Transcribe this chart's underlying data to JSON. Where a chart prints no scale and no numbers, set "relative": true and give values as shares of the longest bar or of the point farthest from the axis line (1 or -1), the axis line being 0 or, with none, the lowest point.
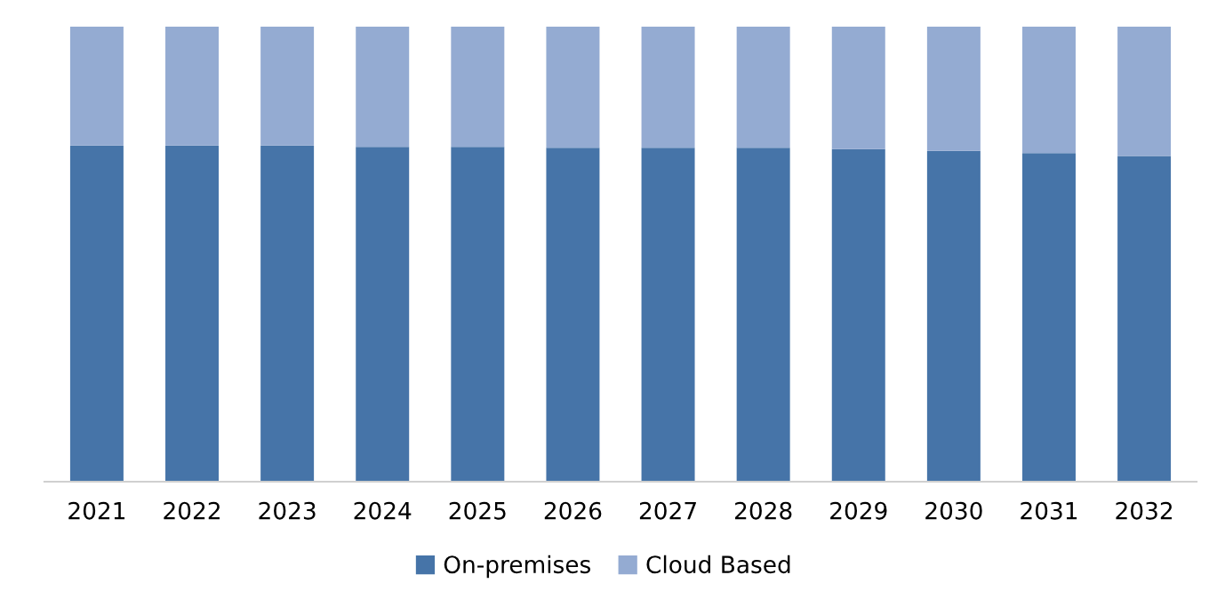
{
  "chart_data": {
    "type": "bar",
    "stacked": true,
    "relative": true,
    "categories": [
      "2021",
      "2022",
      "2023",
      "2024",
      "2025",
      "2026",
      "2027",
      "2028",
      "2029",
      "2030",
      "2031",
      "2032"
    ],
    "series": [
      {
        "name": "On-premises",
        "color": "#4674a8",
        "values": [
          0.739,
          0.739,
          0.739,
          0.736,
          0.736,
          0.734,
          0.734,
          0.734,
          0.731,
          0.727,
          0.722,
          0.716
        ]
      },
      {
        "name": "Cloud Based",
        "color": "#94abd2",
        "values": [
          0.261,
          0.261,
          0.261,
          0.264,
          0.264,
          0.266,
          0.266,
          0.266,
          0.269,
          0.273,
          0.278,
          0.284
        ]
      }
    ],
    "legend": "bottom",
    "grid": false
  }
}
